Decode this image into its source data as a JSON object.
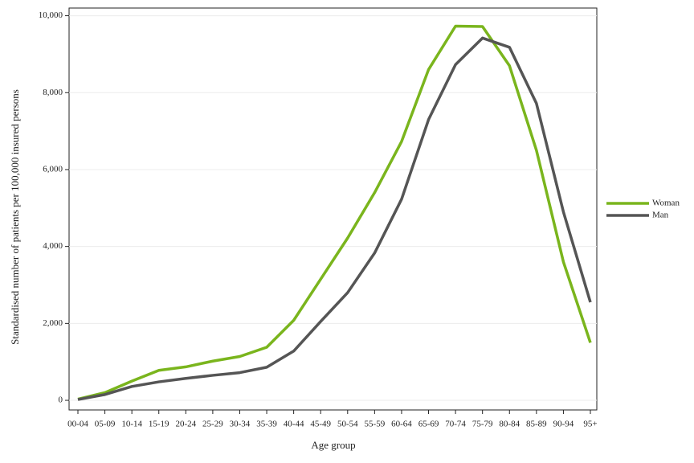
{
  "chart_data": {
    "type": "line",
    "x_label": "Age group",
    "y_label": "Standardised number of patients per 100,000 insured persons",
    "categories": [
      "00-04",
      "05-09",
      "10-14",
      "15-19",
      "20-24",
      "25-29",
      "30-34",
      "35-39",
      "40-44",
      "45-49",
      "50-54",
      "55-59",
      "60-64",
      "65-69",
      "70-74",
      "75-79",
      "80-84",
      "85-89",
      "90-94",
      "95+"
    ],
    "series": [
      {
        "name": "Woman",
        "color": "#7ab51d",
        "values": [
          30,
          200,
          500,
          780,
          870,
          1020,
          1140,
          1380,
          2080,
          3150,
          4220,
          5400,
          6730,
          8600,
          9730,
          9720,
          8700,
          6500,
          3600,
          1500
        ]
      },
      {
        "name": "Man",
        "color": "#555555",
        "values": [
          20,
          150,
          360,
          480,
          570,
          650,
          720,
          860,
          1280,
          2050,
          2800,
          3830,
          5230,
          7300,
          8730,
          9420,
          9180,
          7720,
          4900,
          2550
        ]
      }
    ],
    "ylim": [
      -250,
      10200
    ],
    "yticks": [
      0,
      {
        "value": 2000,
        "label": "2,000"
      },
      {
        "value": 4000,
        "label": "4,000"
      },
      {
        "value": 6000,
        "label": "6,000"
      },
      {
        "value": 8000,
        "label": "8,000"
      },
      {
        "value": 10000,
        "label": "10,000"
      }
    ],
    "grid": true,
    "legend": "right"
  }
}
